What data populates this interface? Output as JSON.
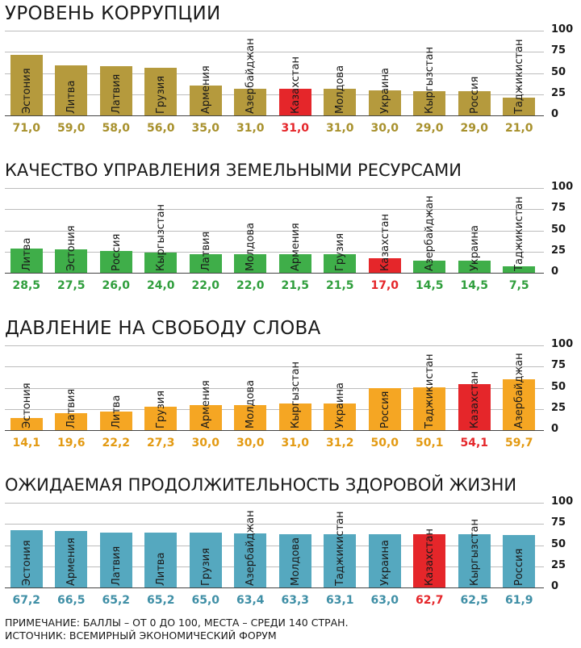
{
  "chart_data": [
    {
      "type": "bar",
      "title": "УРОВЕНЬ КОРРУПЦИИ",
      "ylim": [
        0,
        100
      ],
      "yticks": [
        "0",
        "25",
        "50",
        "75",
        "100"
      ],
      "categories": [
        "Эстония",
        "Литва",
        "Латвия",
        "Грузия",
        "Армения",
        "Азербайджан",
        "Казахстан",
        "Молдова",
        "Украина",
        "Кыргызстан",
        "Россия",
        "Таджикистан"
      ],
      "values": [
        71.0,
        59.0,
        58.0,
        56.0,
        35.0,
        31.0,
        31.0,
        31.0,
        30.0,
        29.0,
        29.0,
        21.0
      ],
      "value_labels": [
        "71,0",
        "59,0",
        "58,0",
        "56,0",
        "35,0",
        "31,0",
        "31,0",
        "31,0",
        "30,0",
        "29,0",
        "29,0",
        "21,0"
      ],
      "highlight": "Казахстан",
      "color": "#b59a3d",
      "label_color": "#a8912d",
      "highlight_color": "#e5262a"
    },
    {
      "type": "bar",
      "title": "КАЧЕСТВО УПРАВЛЕНИЯ ЗЕМЕЛЬНЫМИ РЕСУРСАМИ",
      "ylim": [
        0,
        100
      ],
      "yticks": [
        "0",
        "25",
        "50",
        "75",
        "100"
      ],
      "categories": [
        "Литва",
        "Эстония",
        "Россия",
        "Кыргызстан",
        "Латвия",
        "Молдова",
        "Армения",
        "Грузия",
        "Казахстан",
        "Азербайджан",
        "Украина",
        "Таджикистан"
      ],
      "values": [
        28.5,
        27.5,
        26.0,
        24.0,
        22.0,
        22.0,
        21.5,
        21.5,
        17.0,
        14.5,
        14.5,
        7.5
      ],
      "value_labels": [
        "28,5",
        "27,5",
        "26,0",
        "24,0",
        "22,0",
        "22,0",
        "21,5",
        "21,5",
        "17,0",
        "14,5",
        "14,5",
        "7,5"
      ],
      "highlight": "Казахстан",
      "color": "#3fae49",
      "label_color": "#2f9e3c",
      "highlight_color": "#e5262a"
    },
    {
      "type": "bar",
      "title": "ДАВЛЕНИЕ НА СВОБОДУ СЛОВА",
      "ylim": [
        0,
        100
      ],
      "yticks": [
        "0",
        "25",
        "50",
        "75",
        "100"
      ],
      "categories": [
        "Эстония",
        "Латвия",
        "Литва",
        "Грузия",
        "Армения",
        "Молдова",
        "Кыргызстан",
        "Украина",
        "Россия",
        "Таджикистан",
        "Казахстан",
        "Азербайджан"
      ],
      "values": [
        14.1,
        19.6,
        22.2,
        27.3,
        30.0,
        30.0,
        31.0,
        31.2,
        50.0,
        50.1,
        54.1,
        59.7
      ],
      "value_labels": [
        "14,1",
        "19,6",
        "22,2",
        "27,3",
        "30,0",
        "30,0",
        "31,0",
        "31,2",
        "50,0",
        "50,1",
        "54,1",
        "59,7"
      ],
      "highlight": "Казахстан",
      "color": "#f5a623",
      "label_color": "#e39a12",
      "highlight_color": "#e5262a"
    },
    {
      "type": "bar",
      "title": "ОЖИДАЕМАЯ ПРОДОЛЖИТЕЛЬНОСТЬ ЗДОРОВОЙ ЖИЗНИ",
      "ylim": [
        0,
        100
      ],
      "yticks": [
        "0",
        "25",
        "50",
        "75",
        "100"
      ],
      "categories": [
        "Эстония",
        "Армения",
        "Латвия",
        "Литва",
        "Грузия",
        "Азербайджан",
        "Молдова",
        "Таджикистан",
        "Украина",
        "Казахстан",
        "Кыргызстан",
        "Россия"
      ],
      "values": [
        67.2,
        66.5,
        65.2,
        65.2,
        65.0,
        63.4,
        63.3,
        63.1,
        63.0,
        62.7,
        62.5,
        61.9
      ],
      "value_labels": [
        "67,2",
        "66,5",
        "65,2",
        "65,2",
        "65,0",
        "63,4",
        "63,3",
        "63,1",
        "63,0",
        "62,7",
        "62,5",
        "61,9"
      ],
      "highlight": "Казахстан",
      "color": "#55a8bf",
      "label_color": "#3f8fa6",
      "highlight_color": "#e5262a"
    }
  ],
  "footer": {
    "note": "ПРИМЕЧАНИЕ: БАЛЛЫ – ОТ 0 ДО 100, МЕСТА – СРЕДИ 140 СТРАН.",
    "source": "ИСТОЧНИК: ВСЕМИРНЫЙ ЭКОНОМИЧЕСКИЙ ФОРУМ"
  }
}
